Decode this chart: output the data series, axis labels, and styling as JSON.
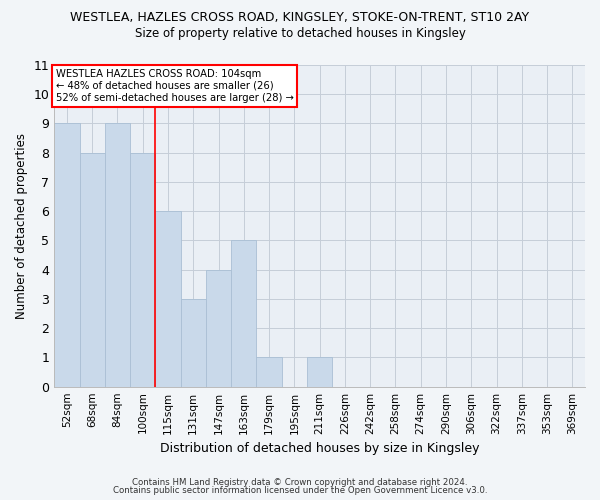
{
  "title": "WESTLEA, HAZLES CROSS ROAD, KINGSLEY, STOKE-ON-TRENT, ST10 2AY",
  "subtitle": "Size of property relative to detached houses in Kingsley",
  "xlabel": "Distribution of detached houses by size in Kingsley",
  "ylabel": "Number of detached properties",
  "categories": [
    "52sqm",
    "68sqm",
    "84sqm",
    "100sqm",
    "115sqm",
    "131sqm",
    "147sqm",
    "163sqm",
    "179sqm",
    "195sqm",
    "211sqm",
    "226sqm",
    "242sqm",
    "258sqm",
    "274sqm",
    "290sqm",
    "306sqm",
    "322sqm",
    "337sqm",
    "353sqm",
    "369sqm"
  ],
  "values": [
    9,
    8,
    9,
    8,
    6,
    3,
    4,
    5,
    1,
    0,
    1,
    0,
    0,
    0,
    0,
    0,
    0,
    0,
    0,
    0,
    0
  ],
  "bar_color": "#c9d9ea",
  "bar_edgecolor": "#aabfd4",
  "redline_x": 3.5,
  "annotation_title": "WESTLEA HAZLES CROSS ROAD: 104sqm",
  "annotation_line1": "← 48% of detached houses are smaller (26)",
  "annotation_line2": "52% of semi-detached houses are larger (28) →",
  "ylim": [
    0,
    11
  ],
  "yticks": [
    0,
    1,
    2,
    3,
    4,
    5,
    6,
    7,
    8,
    9,
    10,
    11
  ],
  "footer1": "Contains HM Land Registry data © Crown copyright and database right 2024.",
  "footer2": "Contains public sector information licensed under the Open Government Licence v3.0.",
  "bg_color": "#f2f5f8",
  "plot_bg_color": "#eaeff5",
  "grid_color": "#c5cdd8"
}
